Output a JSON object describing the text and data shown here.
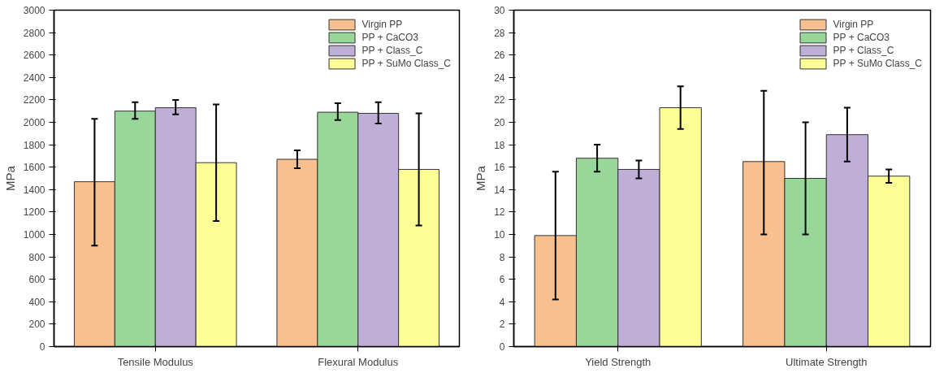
{
  "chart_data": [
    {
      "type": "bar",
      "ylabel": "MPa",
      "categories": [
        "Tensile Modulus",
        "Flexural Modulus"
      ],
      "ylim": [
        0,
        3000
      ],
      "yticks": [
        0,
        200,
        400,
        600,
        800,
        1000,
        1200,
        1400,
        1600,
        1800,
        2000,
        2200,
        2400,
        2600,
        2800,
        3000
      ],
      "legend": "top right",
      "grid": false,
      "series": [
        {
          "name": "Virgin PP",
          "color": "#f9c08f",
          "values": [
            1470,
            1670
          ],
          "errors": [
            [
              900,
              2030
            ],
            [
              1590,
              1750
            ]
          ]
        },
        {
          "name": "PP + CaCO3",
          "color": "#99d69a",
          "values": [
            2100,
            2090
          ],
          "errors": [
            [
              2030,
              2180
            ],
            [
              2020,
              2170
            ]
          ]
        },
        {
          "name": "PP + Class_C",
          "color": "#bfaed6",
          "values": [
            2130,
            2080
          ],
          "errors": [
            [
              2070,
              2200
            ],
            [
              1990,
              2180
            ]
          ]
        },
        {
          "name": "PP + SuMo Class_C",
          "color": "#fdfd96",
          "values": [
            1640,
            1580
          ],
          "errors": [
            [
              1120,
              2160
            ],
            [
              1080,
              2080
            ]
          ]
        }
      ]
    },
    {
      "type": "bar",
      "ylabel": "MPa",
      "categories": [
        "Yield Strength",
        "Ultimate Strength"
      ],
      "ylim": [
        0,
        30
      ],
      "yticks": [
        0,
        2,
        4,
        6,
        8,
        10,
        12,
        14,
        16,
        18,
        20,
        22,
        24,
        26,
        28,
        30
      ],
      "legend": "top right",
      "grid": false,
      "series": [
        {
          "name": "Virgin PP",
          "color": "#f9c08f",
          "values": [
            9.9,
            16.5
          ],
          "errors": [
            [
              4.2,
              15.6
            ],
            [
              10,
              22.8
            ]
          ]
        },
        {
          "name": "PP + CaCO3",
          "color": "#99d69a",
          "values": [
            16.8,
            15.0
          ],
          "errors": [
            [
              15.6,
              18
            ],
            [
              10,
              20
            ]
          ]
        },
        {
          "name": "PP + Class_C",
          "color": "#bfaed6",
          "values": [
            15.8,
            18.9
          ],
          "errors": [
            [
              15,
              16.6
            ],
            [
              16.5,
              21.3
            ]
          ]
        },
        {
          "name": "PP + SuMo Class_C",
          "color": "#fdfd96",
          "values": [
            21.3,
            15.2
          ],
          "errors": [
            [
              19.4,
              23.2
            ],
            [
              14.6,
              15.8
            ]
          ]
        }
      ]
    }
  ]
}
